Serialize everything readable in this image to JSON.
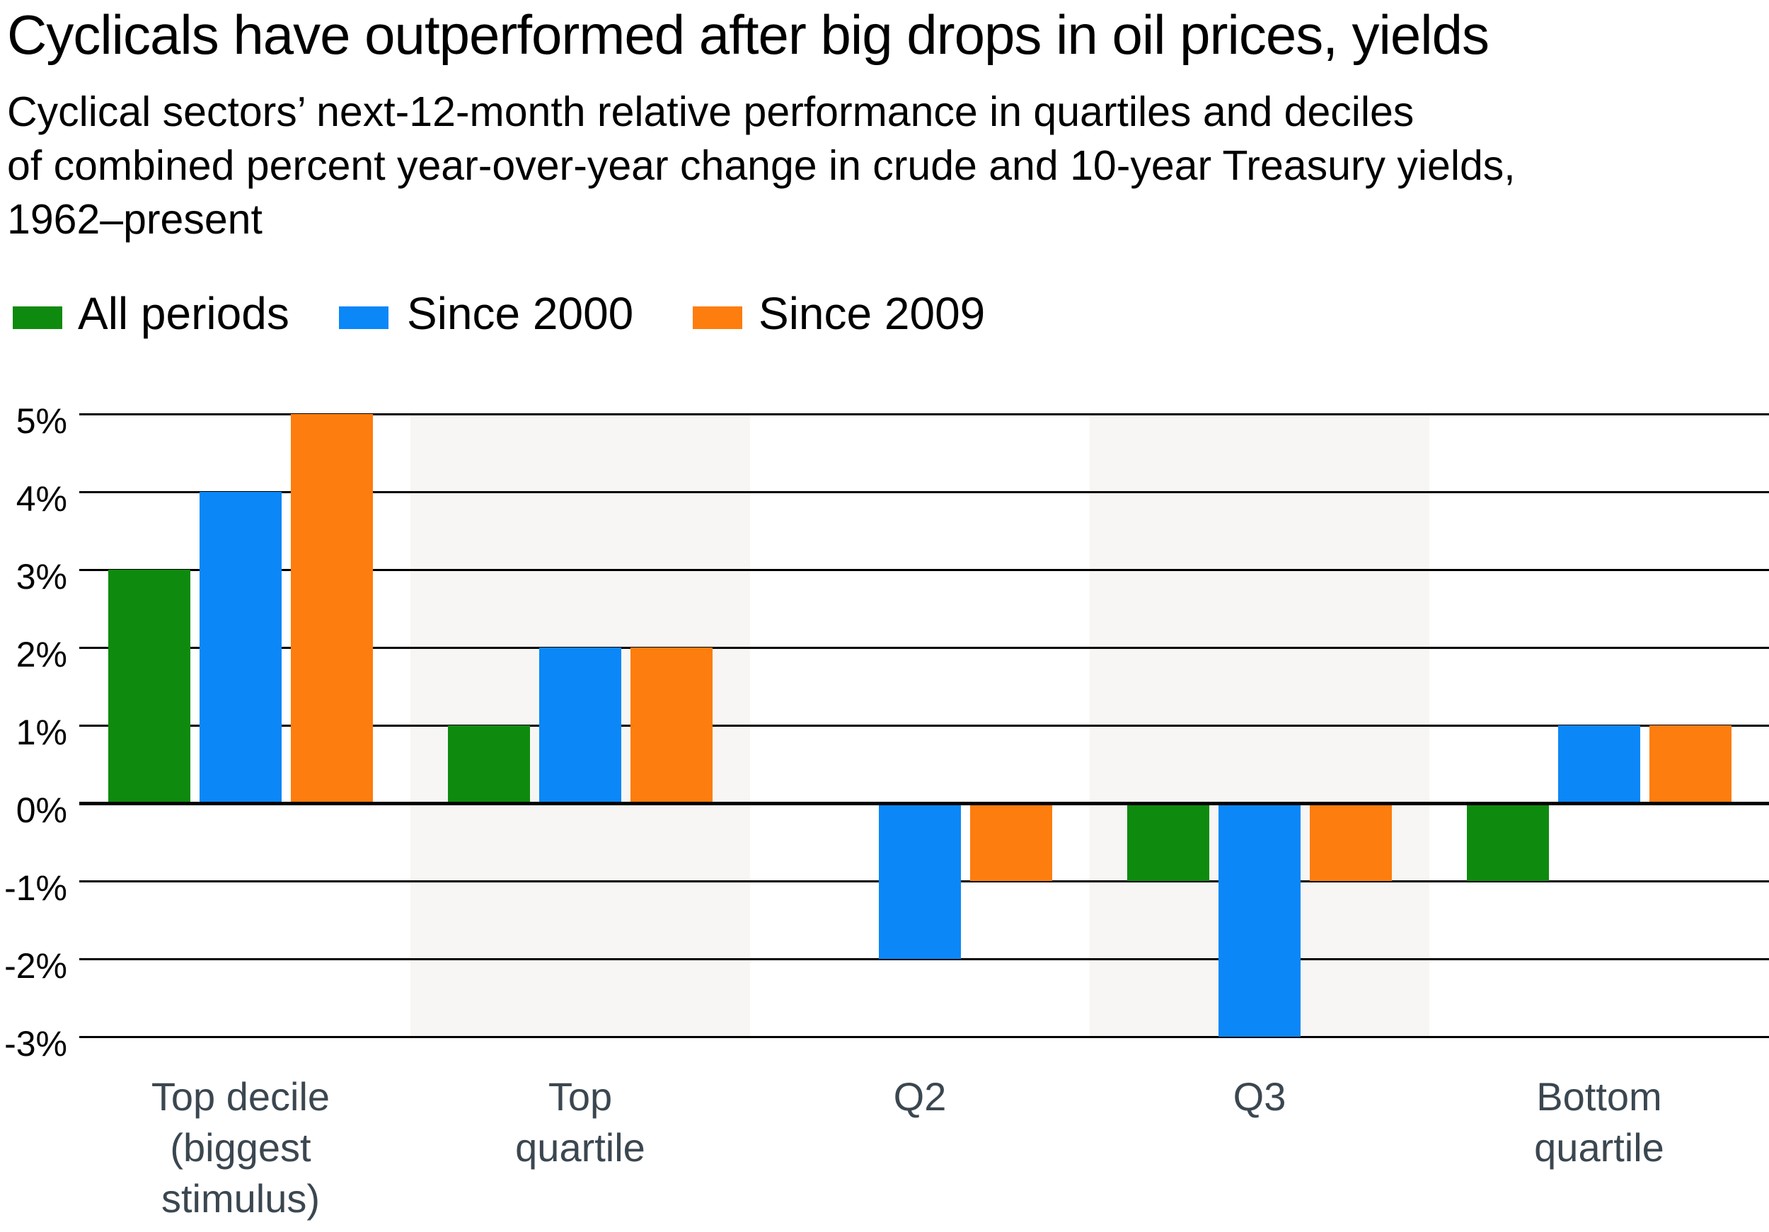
{
  "header": {
    "title": "Cyclicals have outperformed after big drops in oil prices, yields",
    "subtitle_lines": [
      "Cyclical sectors’ next-12-month relative performance in quartiles and deciles",
      "of combined percent year-over-year change in crude and 10-year Treasury yields,",
      "1962–present"
    ]
  },
  "legend": {
    "position": "top",
    "items": [
      {
        "label": "All periods",
        "color": "#0e8b0e"
      },
      {
        "label": "Since 2000",
        "color": "#0b87f7"
      },
      {
        "label": "Since 2009",
        "color": "#fd7d0e"
      }
    ]
  },
  "chart_data": {
    "type": "bar",
    "title": "Cyclicals have outperformed after big drops in oil prices, yields",
    "xlabel": "",
    "ylabel": "",
    "categories": [
      "Top decile\n(biggest\nstimulus)",
      "Top\nquartile",
      "Q2",
      "Q3",
      "Bottom\nquartile"
    ],
    "series": [
      {
        "name": "All periods",
        "color": "#0e8b0e",
        "values": [
          3,
          1,
          0,
          -1,
          -1
        ]
      },
      {
        "name": "Since 2000",
        "color": "#0b87f7",
        "values": [
          4,
          2,
          -2,
          -3,
          1
        ]
      },
      {
        "name": "Since 2009",
        "color": "#fd7d0e",
        "values": [
          5,
          2,
          -1,
          -1,
          1
        ]
      }
    ],
    "unit": "percent",
    "y_ticks": [
      "5%",
      "4%",
      "3%",
      "2%",
      "1%",
      "0%",
      "-1%",
      "-2%",
      "-3%"
    ],
    "y_tick_values": [
      5,
      4,
      3,
      2,
      1,
      0,
      -1,
      -2,
      -3
    ],
    "ylim": [
      -3,
      5
    ],
    "grid": true,
    "zero_line_emphasized": true,
    "legend_position": "top",
    "shaded_slot_indices": [
      1,
      3
    ],
    "shaded_band_color": "#f7f6f4",
    "x_label_color": "#3b4750"
  }
}
